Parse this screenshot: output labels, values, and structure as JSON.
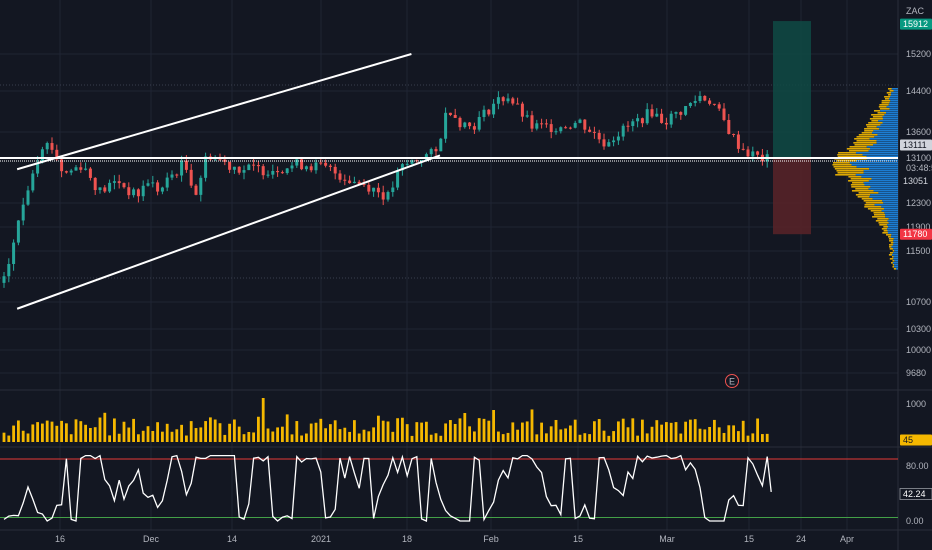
{
  "symbol": "ZAC",
  "colors": {
    "background": "#131722",
    "grid": "#1f2433",
    "up": "#26a69a",
    "down": "#ef5350",
    "volume": "#f5b800",
    "line": "#ffffff",
    "upper_band": "#e53935",
    "lower_band": "#43a047",
    "target_zone": "#0f4a44",
    "stop_zone": "#5b2328",
    "profile_up": "#1e88e5",
    "profile_down": "#f5b800"
  },
  "chart_data": {
    "type": "candlestick",
    "price_axis": {
      "ticks": [
        "15200",
        "14400",
        "13600",
        "13100",
        "12300",
        "11900",
        "11500",
        "10700",
        "10300",
        "10000",
        "9680"
      ],
      "ylim": [
        9500,
        16100
      ]
    },
    "x_axis": {
      "ticks": [
        "16",
        "Dec",
        "14",
        "2021",
        "18",
        "Feb",
        "15",
        "Mar",
        "15",
        "24",
        "Apr"
      ]
    },
    "price_tags": {
      "target": "15912",
      "current": "13111",
      "countdown": "03:48:5",
      "reference": "13051",
      "stop": "11780",
      "entry": "13100"
    },
    "price_line": 13100,
    "channel": {
      "upper": [
        {
          "date": "2020-11-01",
          "price": 12900
        },
        {
          "date": "2021-03-19",
          "price": 15200
        }
      ],
      "lower": [
        {
          "date": "2020-11-01",
          "price": 10600
        },
        {
          "date": "2021-03-29",
          "price": 13150
        }
      ]
    },
    "position": {
      "entry": 13100,
      "target": 15912,
      "stop": 11780
    },
    "event_marker": "E",
    "volume": {
      "axis_ticks": [
        "1000",
        "45"
      ],
      "last": "45"
    },
    "oscillator": {
      "axis_ticks": [
        "80.00",
        "0.00"
      ],
      "last": "42.24",
      "upper_band": 90,
      "lower_band": 5,
      "ylim": [
        -10,
        100
      ]
    }
  }
}
